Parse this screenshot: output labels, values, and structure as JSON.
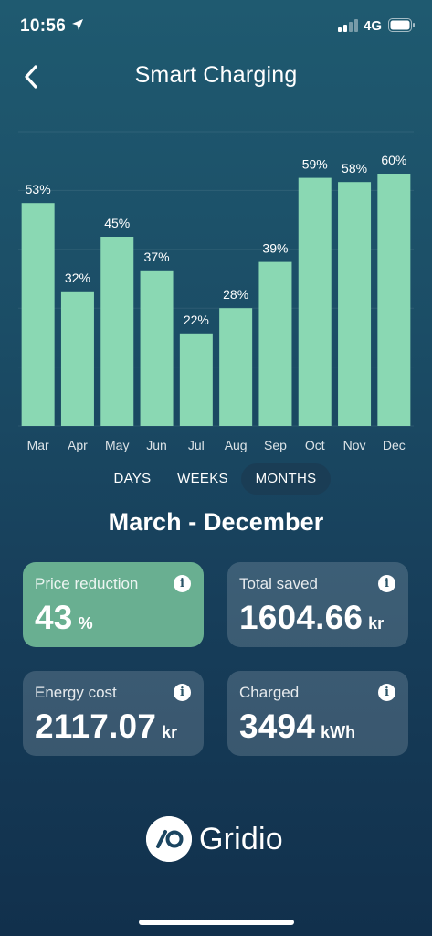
{
  "status_bar": {
    "time": "10:56",
    "network": "4G",
    "location_icon": "location-arrow-icon",
    "signal_icon": "signal-icon",
    "battery_icon": "battery-icon"
  },
  "header": {
    "title": "Smart Charging",
    "back_icon": "chevron-left-icon"
  },
  "chart_data": {
    "type": "bar",
    "categories": [
      "Mar",
      "Apr",
      "May",
      "Jun",
      "Jul",
      "Aug",
      "Sep",
      "Oct",
      "Nov",
      "Dec"
    ],
    "values": [
      53,
      32,
      45,
      37,
      22,
      28,
      39,
      59,
      58,
      60
    ],
    "data_labels": [
      "53%",
      "32%",
      "45%",
      "37%",
      "22%",
      "28%",
      "39%",
      "59%",
      "58%",
      "60%"
    ],
    "ylim": [
      0,
      70
    ],
    "grid": true,
    "bar_color": "#8ad8b3"
  },
  "period_tabs": {
    "items": [
      "DAYS",
      "WEEKS",
      "MONTHS"
    ],
    "selected": "MONTHS"
  },
  "range_title": "March - December",
  "cards": [
    {
      "label": "Price reduction",
      "value": "43",
      "unit": "%",
      "highlight": true
    },
    {
      "label": "Total saved",
      "value": "1604.66",
      "unit": "kr",
      "highlight": false
    },
    {
      "label": "Energy cost",
      "value": "2117.07",
      "unit": "kr",
      "highlight": false
    },
    {
      "label": "Charged",
      "value": "3494",
      "unit": "kWh",
      "highlight": false
    }
  ],
  "info_icon_glyph": "i",
  "brand": {
    "name": "Gridio",
    "logo_icon": "gridio-logo-icon"
  },
  "colors": {
    "accent": "#8ad8b3",
    "card_highlight": "#69af91",
    "active_tab": "#1a3d55"
  }
}
